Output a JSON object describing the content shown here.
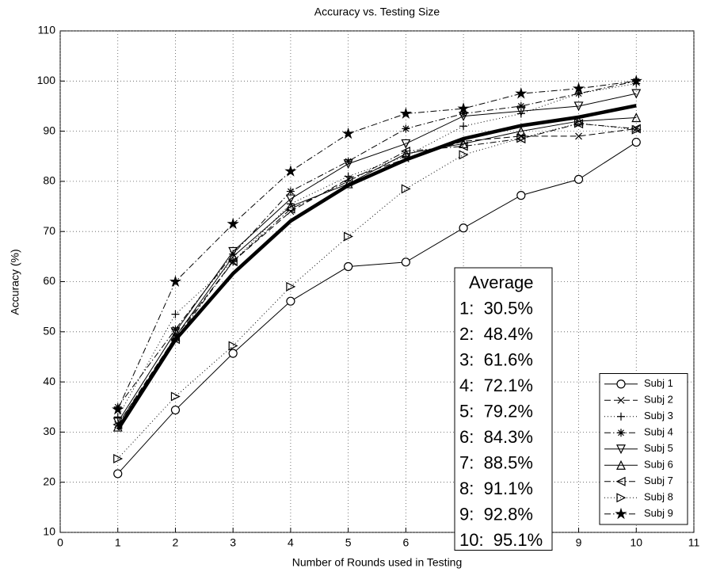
{
  "chart_data": {
    "type": "line",
    "title": "Accuracy vs. Testing Size",
    "x_label": "Number of Rounds used in Testing",
    "y_label": "Accuracy (%)",
    "x": [
      1,
      2,
      3,
      4,
      5,
      6,
      7,
      8,
      9,
      10
    ],
    "xlim": [
      0,
      11
    ],
    "xticks": [
      0,
      1,
      2,
      3,
      4,
      5,
      6,
      7,
      8,
      9,
      10,
      11
    ],
    "ylim": [
      10,
      110
    ],
    "yticks": [
      10,
      20,
      30,
      40,
      50,
      60,
      70,
      80,
      90,
      100,
      110
    ],
    "grid": true,
    "legend": "lower right",
    "series": [
      {
        "name": "Subj 1",
        "color": "#000000",
        "marker": "o",
        "dash": "solid",
        "values": [
          21.7,
          34.4,
          45.7,
          56.1,
          63.0,
          63.9,
          70.7,
          77.2,
          80.4,
          87.8
        ]
      },
      {
        "name": "Subj 2",
        "color": "#000000",
        "marker": "x",
        "dash": "dashed",
        "values": [
          31.5,
          49.0,
          64.0,
          74.0,
          80.5,
          84.5,
          88.0,
          89.0,
          89.0,
          90.5
        ]
      },
      {
        "name": "Subj 3",
        "color": "#000000",
        "marker": "+",
        "dash": "dotted",
        "values": [
          33.0,
          53.5,
          64.0,
          75.5,
          81.0,
          85.0,
          91.0,
          93.5,
          97.5,
          99.5
        ]
      },
      {
        "name": "Subj 4",
        "color": "#000000",
        "marker": "*",
        "dash": "dashdot",
        "values": [
          35.0,
          50.5,
          65.5,
          78.0,
          84.0,
          90.5,
          93.5,
          95.0,
          97.5,
          100.0
        ]
      },
      {
        "name": "Subj 5",
        "color": "#000000",
        "marker": "v",
        "dash": "solid",
        "values": [
          32.0,
          50.0,
          66.0,
          76.5,
          83.5,
          87.5,
          93.0,
          94.0,
          95.0,
          97.5
        ]
      },
      {
        "name": "Subj 6",
        "color": "#000000",
        "marker": "^",
        "dash": "solid",
        "values": [
          31.0,
          49.0,
          65.0,
          75.0,
          79.5,
          85.5,
          87.5,
          90.0,
          92.0,
          92.7
        ]
      },
      {
        "name": "Subj 7",
        "color": "#000000",
        "marker": "<",
        "dash": "dashdot",
        "values": [
          31.5,
          48.5,
          64.0,
          74.5,
          80.0,
          86.0,
          87.0,
          88.5,
          91.5,
          90.5
        ]
      },
      {
        "name": "Subj 8",
        "color": "#000000",
        "marker": ">",
        "dash": "dotted",
        "values": [
          24.7,
          37.1,
          47.2,
          59.0,
          69.0,
          78.5,
          85.3,
          88.6,
          91.6,
          90.3
        ]
      },
      {
        "name": "Subj 9",
        "color": "#000000",
        "marker": "star",
        "dash": "dashdot",
        "values": [
          34.5,
          60.0,
          71.5,
          82.0,
          89.5,
          93.5,
          94.5,
          97.5,
          98.5,
          100.0
        ]
      },
      {
        "name": "Average",
        "color": "#000000",
        "marker": "none",
        "dash": "thick",
        "in_legend": false,
        "values": [
          30.5,
          48.4,
          61.6,
          72.1,
          79.2,
          84.3,
          88.5,
          91.1,
          92.8,
          95.1
        ],
        "value_labels": [
          "1:  30.5%",
          "2:  48.4%",
          "3:  61.6%",
          "4:  72.1%",
          "5:  79.2%",
          "6:  84.3%",
          "7:  88.5%",
          "8:  91.1%",
          "9:  92.8%",
          "10:  95.1%"
        ]
      }
    ]
  }
}
